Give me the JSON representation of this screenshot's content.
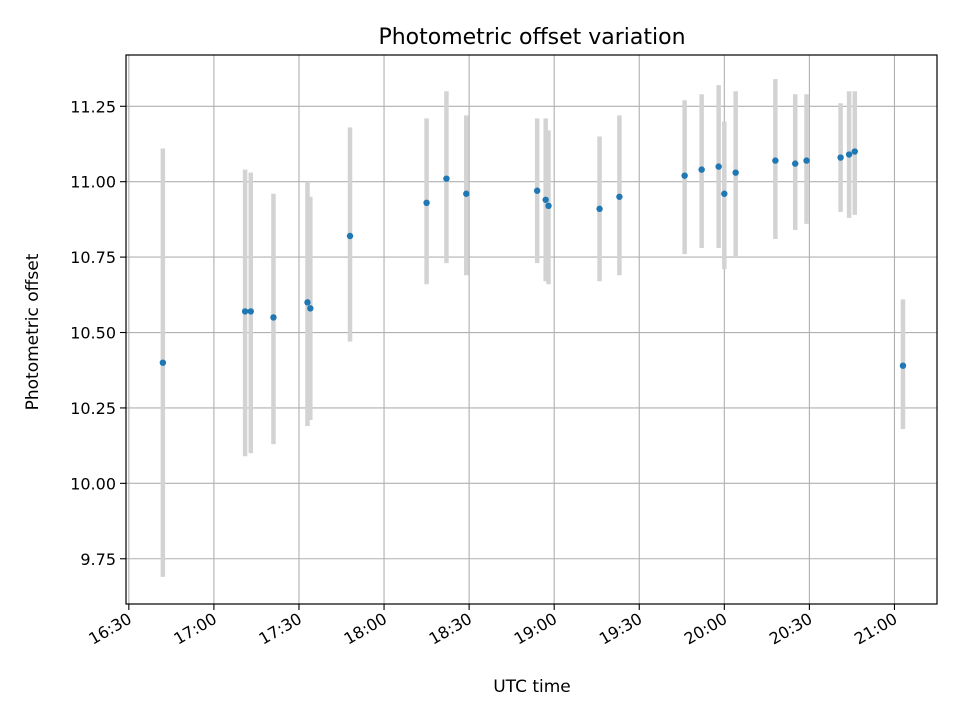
{
  "chart_data": {
    "type": "scatter",
    "title": "Photometric offset variation",
    "xlabel": "UTC time",
    "ylabel": "Photometric offset",
    "x_ticks": [
      "16:30",
      "17:00",
      "17:30",
      "18:00",
      "18:30",
      "19:00",
      "19:30",
      "20:00",
      "20:30",
      "21:00"
    ],
    "y_ticks": [
      "9.75",
      "10.00",
      "10.25",
      "10.50",
      "10.75",
      "11.00",
      "11.25"
    ],
    "xlim": [
      "16:29",
      "21:15"
    ],
    "ylim": [
      9.6,
      11.42
    ],
    "grid": true,
    "colors": {
      "points": "#1f77b4",
      "error_bars": "#d3d3d3",
      "grid": "#b0b0b0"
    },
    "points": [
      {
        "time": "16:42",
        "value": 10.4,
        "low": 9.69,
        "high": 11.11
      },
      {
        "time": "17:11",
        "value": 10.57,
        "low": 10.09,
        "high": 11.04
      },
      {
        "time": "17:13",
        "value": 10.57,
        "low": 10.1,
        "high": 11.03
      },
      {
        "time": "17:21",
        "value": 10.55,
        "low": 10.13,
        "high": 10.96
      },
      {
        "time": "17:33",
        "value": 10.6,
        "low": 10.19,
        "high": 11.0
      },
      {
        "time": "17:34",
        "value": 10.58,
        "low": 10.21,
        "high": 10.95
      },
      {
        "time": "17:48",
        "value": 10.82,
        "low": 10.47,
        "high": 11.18
      },
      {
        "time": "18:15",
        "value": 10.93,
        "low": 10.66,
        "high": 11.21
      },
      {
        "time": "18:22",
        "value": 11.01,
        "low": 10.73,
        "high": 11.3
      },
      {
        "time": "18:29",
        "value": 10.96,
        "low": 10.69,
        "high": 11.22
      },
      {
        "time": "18:54",
        "value": 10.97,
        "low": 10.73,
        "high": 11.21
      },
      {
        "time": "18:57",
        "value": 10.94,
        "low": 10.67,
        "high": 11.21
      },
      {
        "time": "18:58",
        "value": 10.92,
        "low": 10.66,
        "high": 11.17
      },
      {
        "time": "19:16",
        "value": 10.91,
        "low": 10.67,
        "high": 11.15
      },
      {
        "time": "19:23",
        "value": 10.95,
        "low": 10.69,
        "high": 11.22
      },
      {
        "time": "19:46",
        "value": 11.02,
        "low": 10.76,
        "high": 11.27
      },
      {
        "time": "19:52",
        "value": 11.04,
        "low": 10.78,
        "high": 11.29
      },
      {
        "time": "19:58",
        "value": 11.05,
        "low": 10.78,
        "high": 11.32
      },
      {
        "time": "20:00",
        "value": 10.96,
        "low": 10.71,
        "high": 11.2
      },
      {
        "time": "20:04",
        "value": 11.03,
        "low": 10.75,
        "high": 11.3
      },
      {
        "time": "20:18",
        "value": 11.07,
        "low": 10.81,
        "high": 11.34
      },
      {
        "time": "20:25",
        "value": 11.06,
        "low": 10.84,
        "high": 11.29
      },
      {
        "time": "20:29",
        "value": 11.07,
        "low": 10.86,
        "high": 11.29
      },
      {
        "time": "20:41",
        "value": 11.08,
        "low": 10.9,
        "high": 11.26
      },
      {
        "time": "20:44",
        "value": 11.09,
        "low": 10.88,
        "high": 11.3
      },
      {
        "time": "20:46",
        "value": 11.1,
        "low": 10.89,
        "high": 11.3
      },
      {
        "time": "21:03",
        "value": 10.39,
        "low": 10.18,
        "high": 10.61
      }
    ]
  }
}
